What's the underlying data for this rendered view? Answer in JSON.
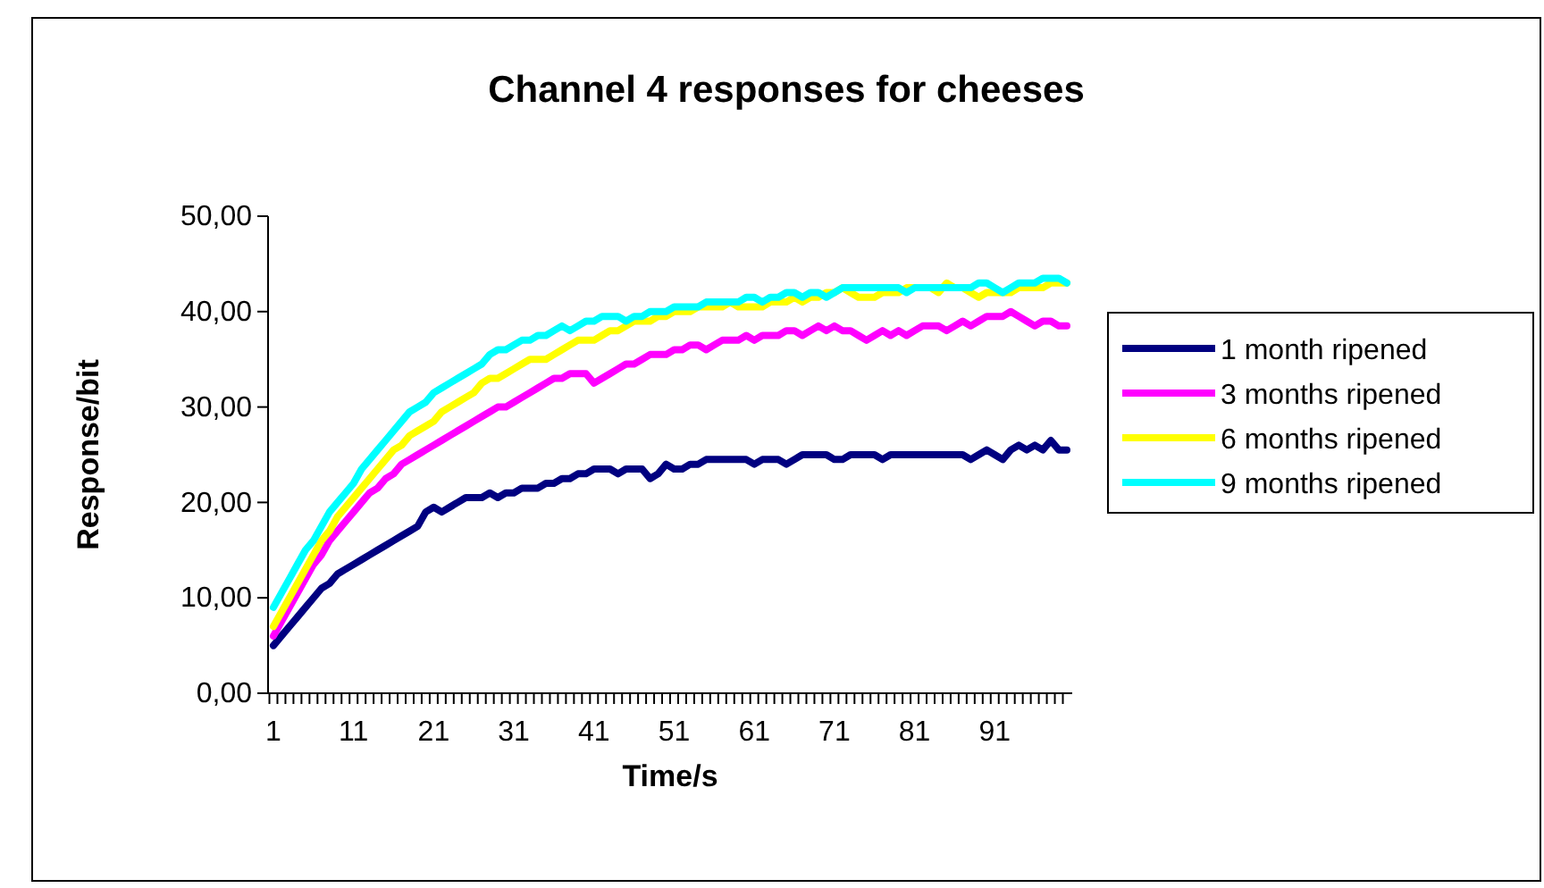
{
  "chart_data": {
    "type": "line",
    "title": "Channel 4 responses for cheeses",
    "xlabel": "Time/s",
    "ylabel": "Response/bit",
    "categories": [
      "1",
      null,
      null,
      null,
      null,
      null,
      null,
      null,
      null,
      null,
      "11",
      null,
      null,
      null,
      null,
      null,
      null,
      null,
      null,
      null,
      "21",
      null,
      null,
      null,
      null,
      null,
      null,
      null,
      null,
      null,
      "31",
      null,
      null,
      null,
      null,
      null,
      null,
      null,
      null,
      null,
      "41",
      null,
      null,
      null,
      null,
      null,
      null,
      null,
      null,
      null,
      "51",
      null,
      null,
      null,
      null,
      null,
      null,
      null,
      null,
      null,
      "61",
      null,
      null,
      null,
      null,
      null,
      null,
      null,
      null,
      null,
      "71",
      null,
      null,
      null,
      null,
      null,
      null,
      null,
      null,
      null,
      "81",
      null,
      null,
      null,
      null,
      null,
      null,
      null,
      null,
      null,
      "91",
      null,
      null,
      null,
      null,
      null,
      null,
      null,
      null,
      null
    ],
    "ylim": [
      0,
      50
    ],
    "yticks": [
      {
        "value": 0,
        "label": "0,00"
      },
      {
        "value": 10,
        "label": "10,00"
      },
      {
        "value": 20,
        "label": "20,00"
      },
      {
        "value": 30,
        "label": "30,00"
      },
      {
        "value": 40,
        "label": "40,00"
      },
      {
        "value": 50,
        "label": "50,00"
      }
    ],
    "legend": "right",
    "marker": "none",
    "line_style": "solid",
    "grid": false,
    "series": [
      {
        "name": "1 month ripened",
        "color": "#000080",
        "values": [
          5.0,
          6.0,
          7.0,
          8.0,
          9.0,
          10.0,
          11.0,
          11.5,
          12.5,
          13.0,
          13.5,
          14.0,
          14.5,
          15.0,
          15.5,
          16.0,
          16.5,
          17.0,
          17.5,
          19.0,
          19.5,
          19.0,
          19.5,
          20.0,
          20.5,
          20.5,
          20.5,
          21.0,
          20.5,
          21.0,
          21.0,
          21.5,
          21.5,
          21.5,
          22.0,
          22.0,
          22.5,
          22.5,
          23.0,
          23.0,
          23.5,
          23.5,
          23.5,
          23.0,
          23.5,
          23.5,
          23.5,
          22.5,
          23.0,
          24.0,
          23.5,
          23.5,
          24.0,
          24.0,
          24.5,
          24.5,
          24.5,
          24.5,
          24.5,
          24.5,
          24.0,
          24.5,
          24.5,
          24.5,
          24.0,
          24.5,
          25.0,
          25.0,
          25.0,
          25.0,
          24.5,
          24.5,
          25.0,
          25.0,
          25.0,
          25.0,
          24.5,
          25.0,
          25.0,
          25.0,
          25.0,
          25.0,
          25.0,
          25.0,
          25.0,
          25.0,
          25.0,
          24.5,
          25.0,
          25.5,
          25.0,
          24.5,
          25.5,
          26.0,
          25.5,
          26.0,
          25.5,
          26.5,
          25.5,
          25.5
        ]
      },
      {
        "name": "3 months ripened",
        "color": "#ff00ff",
        "values": [
          6.0,
          7.5,
          9.0,
          10.5,
          12.0,
          13.5,
          14.5,
          16.0,
          17.0,
          18.0,
          19.0,
          20.0,
          21.0,
          21.5,
          22.5,
          23.0,
          24.0,
          24.5,
          25.0,
          25.5,
          26.0,
          26.5,
          27.0,
          27.5,
          28.0,
          28.5,
          29.0,
          29.5,
          30.0,
          30.0,
          30.5,
          31.0,
          31.5,
          32.0,
          32.5,
          33.0,
          33.0,
          33.5,
          33.5,
          33.5,
          32.5,
          33.0,
          33.5,
          34.0,
          34.5,
          34.5,
          35.0,
          35.5,
          35.5,
          35.5,
          36.0,
          36.0,
          36.5,
          36.5,
          36.0,
          36.5,
          37.0,
          37.0,
          37.0,
          37.5,
          37.0,
          37.5,
          37.5,
          37.5,
          38.0,
          38.0,
          37.5,
          38.0,
          38.5,
          38.0,
          38.5,
          38.0,
          38.0,
          37.5,
          37.0,
          37.5,
          38.0,
          37.5,
          38.0,
          37.5,
          38.0,
          38.5,
          38.5,
          38.5,
          38.0,
          38.5,
          39.0,
          38.5,
          39.0,
          39.5,
          39.5,
          39.5,
          40.0,
          39.5,
          39.0,
          38.5,
          39.0,
          39.0,
          38.5,
          38.5
        ]
      },
      {
        "name": "6 months ripened",
        "color": "#ffff00",
        "values": [
          7.0,
          8.5,
          10.0,
          11.5,
          13.0,
          14.5,
          16.0,
          17.0,
          18.5,
          19.5,
          20.5,
          21.5,
          22.5,
          23.5,
          24.5,
          25.5,
          26.0,
          27.0,
          27.5,
          28.0,
          28.5,
          29.5,
          30.0,
          30.5,
          31.0,
          31.5,
          32.5,
          33.0,
          33.0,
          33.5,
          34.0,
          34.5,
          35.0,
          35.0,
          35.0,
          35.5,
          36.0,
          36.5,
          37.0,
          37.0,
          37.0,
          37.5,
          38.0,
          38.0,
          38.5,
          39.0,
          39.0,
          39.0,
          39.5,
          39.5,
          40.0,
          40.0,
          40.0,
          40.5,
          40.5,
          40.5,
          40.5,
          41.0,
          40.5,
          40.5,
          40.5,
          40.5,
          41.0,
          41.0,
          41.0,
          41.5,
          41.0,
          41.5,
          41.5,
          42.0,
          42.0,
          42.5,
          42.0,
          41.5,
          41.5,
          41.5,
          42.0,
          42.0,
          42.0,
          42.5,
          42.5,
          42.5,
          42.5,
          42.0,
          43.0,
          42.5,
          42.5,
          42.0,
          41.5,
          42.0,
          42.0,
          42.0,
          42.0,
          42.5,
          42.5,
          42.5,
          42.5,
          43.0,
          43.0,
          43.0
        ]
      },
      {
        "name": "9 months ripened",
        "color": "#00ffff",
        "values": [
          9.0,
          10.5,
          12.0,
          13.5,
          15.0,
          16.0,
          17.5,
          19.0,
          20.0,
          21.0,
          22.0,
          23.5,
          24.5,
          25.5,
          26.5,
          27.5,
          28.5,
          29.5,
          30.0,
          30.5,
          31.5,
          32.0,
          32.5,
          33.0,
          33.5,
          34.0,
          34.5,
          35.5,
          36.0,
          36.0,
          36.5,
          37.0,
          37.0,
          37.5,
          37.5,
          38.0,
          38.5,
          38.0,
          38.5,
          39.0,
          39.0,
          39.5,
          39.5,
          39.5,
          39.0,
          39.5,
          39.5,
          40.0,
          40.0,
          40.0,
          40.5,
          40.5,
          40.5,
          40.5,
          41.0,
          41.0,
          41.0,
          41.0,
          41.0,
          41.5,
          41.5,
          41.0,
          41.5,
          41.5,
          42.0,
          42.0,
          41.5,
          42.0,
          42.0,
          41.5,
          42.0,
          42.5,
          42.5,
          42.5,
          42.5,
          42.5,
          42.5,
          42.5,
          42.5,
          42.0,
          42.5,
          42.5,
          42.5,
          42.5,
          42.5,
          42.5,
          42.5,
          42.5,
          43.0,
          43.0,
          42.5,
          42.0,
          42.5,
          43.0,
          43.0,
          43.0,
          43.5,
          43.5,
          43.5,
          43.0
        ]
      }
    ]
  }
}
